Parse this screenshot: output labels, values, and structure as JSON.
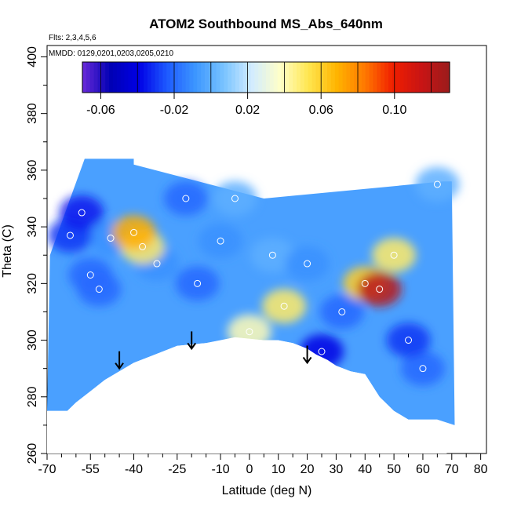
{
  "chart_data": {
    "type": "heatmap",
    "title": "ATOM2 Southbound MS_Abs_640nm",
    "flights_text": "Flts: 2,3,4,5,6",
    "dates_text": "MMDD: 0129,0201,0203,0205,0210",
    "xlabel": "Latitude (deg N)",
    "ylabel": "Theta (C)",
    "xlim": [
      -70,
      82
    ],
    "ylim": [
      260,
      404
    ],
    "x_ticks": [
      -70,
      -55,
      -40,
      -25,
      -10,
      0,
      10,
      20,
      30,
      40,
      50,
      60,
      70,
      80
    ],
    "x_tick_labels": [
      "-70",
      "-55",
      "-40",
      "-25",
      "-10",
      "0",
      "10",
      "20",
      "30",
      "40",
      "50",
      "60",
      "70",
      "80"
    ],
    "y_ticks": [
      260,
      280,
      300,
      320,
      340,
      360,
      380,
      400
    ],
    "y_tick_labels": [
      "260",
      "280",
      "300",
      "320",
      "340",
      "360",
      "380",
      "400"
    ],
    "colorbar": {
      "range": [
        -0.07,
        0.13
      ],
      "ticks": [
        -0.06,
        -0.02,
        0.02,
        0.06,
        0.1
      ],
      "tick_labels": [
        "-0.06",
        "-0.02",
        "0.02",
        "0.06",
        "0.10"
      ],
      "colors": [
        "#6a2bd9",
        "#0000b4",
        "#0000e6",
        "#1e5aff",
        "#3c96ff",
        "#78c3ff",
        "#d2ecff",
        "#ffffc8",
        "#ffe650",
        "#ffb400",
        "#ff7800",
        "#f01e00",
        "#c81414",
        "#9b1c1c"
      ]
    },
    "observations": [
      {
        "lat": -62,
        "theta": 337,
        "value": -0.03
      },
      {
        "lat": -58,
        "theta": 345,
        "value": -0.035
      },
      {
        "lat": -55,
        "theta": 323,
        "value": -0.02
      },
      {
        "lat": -52,
        "theta": 318,
        "value": -0.02
      },
      {
        "lat": -48,
        "theta": 336,
        "value": -0.01
      },
      {
        "lat": -40,
        "theta": 338,
        "value": 0.07
      },
      {
        "lat": -37,
        "theta": 333,
        "value": 0.05
      },
      {
        "lat": -32,
        "theta": 327,
        "value": -0.01
      },
      {
        "lat": -22,
        "theta": 350,
        "value": -0.02
      },
      {
        "lat": -18,
        "theta": 320,
        "value": -0.02
      },
      {
        "lat": -10,
        "theta": 335,
        "value": -0.01
      },
      {
        "lat": -5,
        "theta": 350,
        "value": 0.0
      },
      {
        "lat": 0,
        "theta": 303,
        "value": 0.04
      },
      {
        "lat": 8,
        "theta": 330,
        "value": 0.0
      },
      {
        "lat": 12,
        "theta": 312,
        "value": 0.05
      },
      {
        "lat": 20,
        "theta": 327,
        "value": -0.01
      },
      {
        "lat": 25,
        "theta": 296,
        "value": -0.04
      },
      {
        "lat": 32,
        "theta": 310,
        "value": -0.02
      },
      {
        "lat": 40,
        "theta": 320,
        "value": 0.06
      },
      {
        "lat": 45,
        "theta": 318,
        "value": 0.12
      },
      {
        "lat": 50,
        "theta": 330,
        "value": 0.05
      },
      {
        "lat": 55,
        "theta": 300,
        "value": -0.03
      },
      {
        "lat": 60,
        "theta": 290,
        "value": -0.02
      },
      {
        "lat": 65,
        "theta": 355,
        "value": 0.0
      }
    ],
    "tropopause_arrows": [
      {
        "lat": -45,
        "theta": 290
      },
      {
        "lat": -20,
        "theta": 297
      },
      {
        "lat": 20,
        "theta": 292
      }
    ],
    "grid": false,
    "legend": "colorbar top"
  }
}
